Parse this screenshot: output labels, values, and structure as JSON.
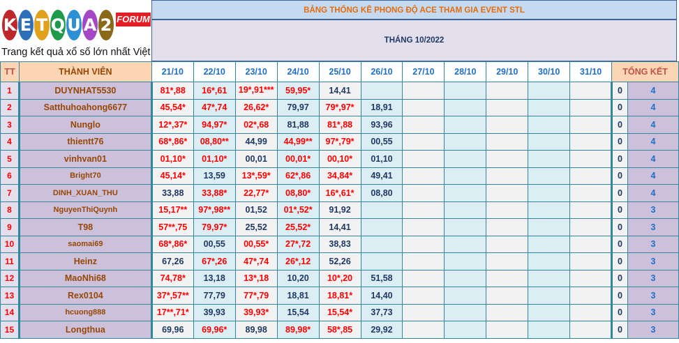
{
  "logo": {
    "letters": [
      "K",
      "E",
      "T",
      "Q",
      "U",
      "A",
      "2"
    ],
    "colors": [
      "#c0272d",
      "#2e6fb7",
      "#e2a11b",
      "#1f9a4b",
      "#2d8fd5",
      "#a447c4",
      "#8a6a1a"
    ],
    "forum": "FORUM",
    "tagline": "Trang kết quả xổ số lớn nhất Việt Nam"
  },
  "title": "BẢNG THỐNG KÊ PHONG ĐỘ ACE THAM GIA EVENT STL",
  "month": "THÁNG 10/2022",
  "headers": {
    "tt": "TT",
    "member": "THÀNH VIÊN",
    "dates": [
      "21/10",
      "22/10",
      "23/10",
      "24/10",
      "25/10",
      "26/10",
      "27/10",
      "28/10",
      "29/10",
      "30/10",
      "31/10"
    ],
    "summary": "TỔNG KẾT"
  },
  "rows": [
    {
      "tt": "1",
      "name": "DUYNHAT5530",
      "small": false,
      "vals": [
        "81*,88",
        "16*,61",
        "19*,91***",
        "59,95*",
        "14,41",
        ""
      ],
      "zero": "0",
      "total": "4"
    },
    {
      "tt": "2",
      "name": "Satthuhoahong6677",
      "small": false,
      "vals": [
        "45,54*",
        "47*,74",
        "26,62*",
        "79,97",
        "79*,97*",
        "18,91"
      ],
      "zero": "0",
      "total": "4"
    },
    {
      "tt": "3",
      "name": "Nunglo",
      "small": false,
      "vals": [
        "12*,37*",
        "94,97*",
        "02*,68",
        "81,88",
        "81*,88",
        "93,96"
      ],
      "zero": "0",
      "total": "4"
    },
    {
      "tt": "4",
      "name": "thientt76",
      "small": false,
      "vals": [
        "68*,86*",
        "08,80**",
        "44,99",
        "44,99**",
        "97*,79*",
        "00,55"
      ],
      "zero": "0",
      "total": "4"
    },
    {
      "tt": "5",
      "name": "vinhvan01",
      "small": false,
      "vals": [
        "01,10*",
        "01,10*",
        "00,01",
        "00,01*",
        "00,10*",
        "01,10"
      ],
      "zero": "0",
      "total": "4"
    },
    {
      "tt": "6",
      "name": "Bright70",
      "small": true,
      "vals": [
        "45,14*",
        "13,59",
        "13*,59*",
        "62*,86",
        "34,84*",
        "49,41"
      ],
      "zero": "0",
      "total": "4"
    },
    {
      "tt": "7",
      "name": "DINH_XUAN_THU",
      "small": true,
      "vals": [
        "33,88",
        "33,88*",
        "22,77*",
        "08,80*",
        "16*,61*",
        "08,80"
      ],
      "zero": "0",
      "total": "4"
    },
    {
      "tt": "8",
      "name": "NguyenThiQuynh",
      "small": true,
      "vals": [
        "15,17**",
        "97*,98**",
        "01,52",
        "01*,52*",
        "91,92",
        ""
      ],
      "zero": "0",
      "total": "3"
    },
    {
      "tt": "9",
      "name": "T98",
      "small": false,
      "vals": [
        "57**,75",
        "79,97*",
        "25,52",
        "25,52*",
        "14,41",
        ""
      ],
      "zero": "0",
      "total": "3"
    },
    {
      "tt": "10",
      "name": "saomai69",
      "small": true,
      "vals": [
        "68*,86*",
        "00,55",
        "00,55*",
        "27*,72",
        "38,83",
        ""
      ],
      "zero": "0",
      "total": "3"
    },
    {
      "tt": "11",
      "name": "Heinz",
      "small": false,
      "vals": [
        "67,26",
        "67*,26",
        "47*,74",
        "26*,12",
        "52,26",
        ""
      ],
      "zero": "0",
      "total": "3"
    },
    {
      "tt": "12",
      "name": "MaoNhi68",
      "small": false,
      "vals": [
        "74,78*",
        "13,18",
        "13*,18",
        "10,20",
        "10*,20",
        "51,58"
      ],
      "zero": "0",
      "total": "3"
    },
    {
      "tt": "13",
      "name": "Rex0104",
      "small": false,
      "vals": [
        "37*,57**",
        "77,79",
        "77*,79",
        "18,81",
        "18,81*",
        "14,40"
      ],
      "zero": "0",
      "total": "3"
    },
    {
      "tt": "14",
      "name": "hcuong888",
      "small": true,
      "vals": [
        "17**,71*",
        "39,93",
        "39,93*",
        "15,54",
        "15,54*",
        "37,73"
      ],
      "zero": "0",
      "total": "3"
    },
    {
      "tt": "15",
      "name": "Longthua",
      "small": false,
      "vals": [
        "69,96",
        "69,96*",
        "89,98",
        "89,98*",
        "58*,85",
        "29,92"
      ],
      "zero": "0",
      "total": "3"
    }
  ]
}
